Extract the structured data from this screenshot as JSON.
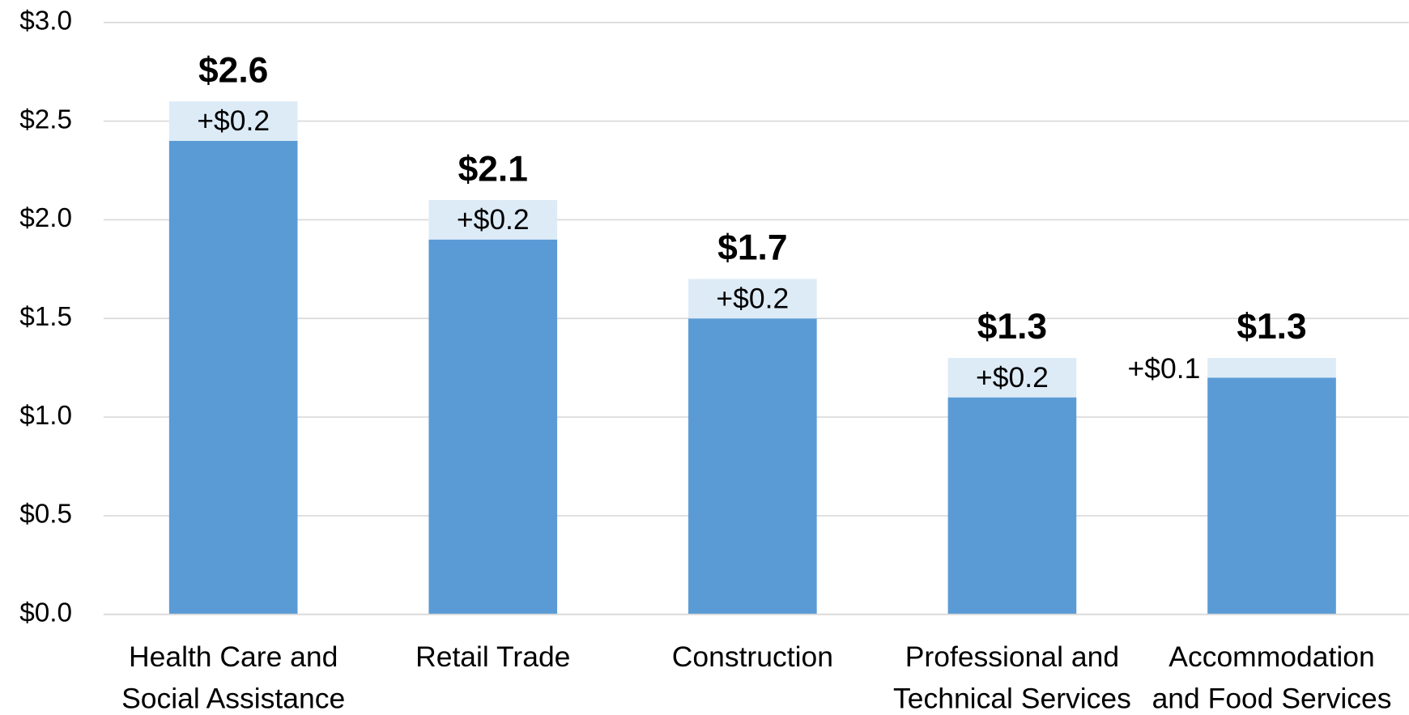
{
  "chart_data": {
    "type": "stacked_bar",
    "categories": [
      "Health Care and\nSocial Assistance",
      "Retail Trade",
      "Construction",
      "Professional and\nTechnical Services",
      "Accommodation\nand Food Services"
    ],
    "series": [
      {
        "color": "#5b9bd5",
        "values": [
          2.4,
          1.9,
          1.5,
          1.1,
          1.2
        ]
      },
      {
        "color": "#ddebf7",
        "values": [
          0.2,
          0.2,
          0.2,
          0.2,
          0.1
        ],
        "value_labels": [
          "+$0.2",
          "+$0.2",
          "+$0.2",
          "+$0.2",
          "+$0.1"
        ]
      }
    ],
    "totals": [
      2.6,
      2.1,
      1.7,
      1.3,
      1.3
    ],
    "total_labels": [
      "$2.6",
      "$2.1",
      "$1.7",
      "$1.3",
      "$1.3"
    ],
    "ylim": [
      0,
      3
    ],
    "yticks": [
      {
        "value": 0,
        "label": "$0.0"
      },
      {
        "value": 0.5,
        "label": "$0.5"
      },
      {
        "value": 1,
        "label": "$1.0"
      },
      {
        "value": 1.5,
        "label": "$1.5"
      },
      {
        "value": 2,
        "label": "$2.0"
      },
      {
        "value": 2.5,
        "label": "$2.5"
      },
      {
        "value": 3,
        "label": "$3.0"
      }
    ],
    "grid": true
  }
}
